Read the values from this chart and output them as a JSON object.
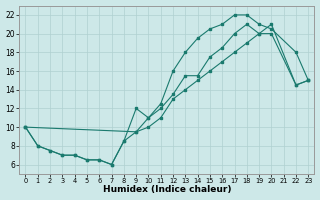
{
  "xlabel": "Humidex (Indice chaleur)",
  "xlim": [
    -0.5,
    23.5
  ],
  "ylim": [
    5,
    23
  ],
  "xticks": [
    0,
    1,
    2,
    3,
    4,
    5,
    6,
    7,
    8,
    9,
    10,
    11,
    12,
    13,
    14,
    15,
    16,
    17,
    18,
    19,
    20,
    21,
    22,
    23
  ],
  "yticks": [
    6,
    8,
    10,
    12,
    14,
    16,
    18,
    20,
    22
  ],
  "bg_color": "#cde8e8",
  "grid_color": "#b0d0d0",
  "line_color": "#1a7a6e",
  "line1_x": [
    0,
    1,
    2,
    3,
    4,
    5,
    6,
    7,
    8,
    9,
    10,
    11,
    12,
    13,
    14,
    15,
    16,
    17,
    18,
    19,
    20,
    22,
    23
  ],
  "line1_y": [
    10,
    8,
    7.5,
    7,
    7,
    6.5,
    6.5,
    6,
    8.5,
    12,
    11,
    12.5,
    16,
    18,
    19.5,
    20.5,
    21,
    22,
    22,
    21,
    20.5,
    18,
    15
  ],
  "line2_x": [
    0,
    1,
    2,
    3,
    4,
    5,
    6,
    7,
    8,
    9,
    10,
    11,
    12,
    13,
    14,
    15,
    16,
    17,
    18,
    19,
    20,
    22,
    23
  ],
  "line2_y": [
    10,
    8,
    7.5,
    7,
    7,
    6.5,
    6.5,
    6,
    8.5,
    9.5,
    11,
    12,
    13.5,
    15.5,
    15.5,
    17.5,
    18.5,
    20,
    21,
    20,
    20,
    14.5,
    15
  ],
  "line3_x": [
    0,
    9,
    10,
    11,
    12,
    13,
    14,
    15,
    16,
    17,
    18,
    19,
    20,
    22,
    23
  ],
  "line3_y": [
    10,
    9.5,
    10,
    11,
    13,
    14,
    15,
    16,
    17,
    18,
    19,
    20,
    21,
    14.5,
    15
  ]
}
